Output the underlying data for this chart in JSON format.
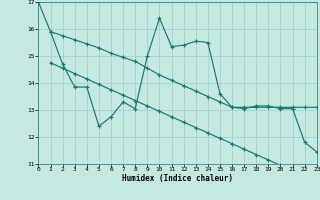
{
  "xlabel": "Humidex (Indice chaleur)",
  "xlim": [
    0,
    23
  ],
  "ylim": [
    11,
    17
  ],
  "yticks": [
    11,
    12,
    13,
    14,
    15,
    16,
    17
  ],
  "xticks": [
    0,
    1,
    2,
    3,
    4,
    5,
    6,
    7,
    8,
    9,
    10,
    11,
    12,
    13,
    14,
    15,
    16,
    17,
    18,
    19,
    20,
    21,
    22,
    23
  ],
  "bg_color": "#c5e8e2",
  "grid_color": "#9acfc6",
  "line_color": "#1a7a6a",
  "series1_x": [
    0,
    1,
    2,
    3,
    4,
    5,
    6,
    7,
    8,
    9,
    10,
    11,
    12,
    13,
    14,
    15,
    16,
    17,
    18,
    19,
    20,
    21,
    22,
    23
  ],
  "series1_y": [
    17.0,
    15.9,
    14.7,
    13.85,
    13.85,
    12.4,
    12.75,
    13.3,
    13.05,
    15.0,
    16.4,
    15.35,
    15.4,
    15.55,
    15.5,
    13.6,
    13.1,
    13.05,
    13.15,
    13.15,
    13.05,
    13.05,
    11.8,
    11.45
  ],
  "series2_x": [
    1,
    2,
    3,
    4,
    5,
    6,
    7,
    8,
    9,
    10,
    11,
    12,
    13,
    14,
    15,
    16,
    17,
    18,
    19,
    20,
    21,
    22,
    23
  ],
  "series2_y": [
    14.75,
    14.55,
    14.35,
    14.15,
    13.95,
    13.75,
    13.55,
    13.35,
    13.15,
    12.95,
    12.75,
    12.55,
    12.35,
    12.15,
    11.95,
    11.75,
    11.55,
    11.35,
    11.15,
    10.95,
    10.75,
    10.55,
    10.35
  ],
  "series3_x": [
    1,
    2,
    3,
    4,
    5,
    6,
    7,
    8,
    9,
    10,
    11,
    12,
    13,
    14,
    15,
    16,
    17,
    18,
    19,
    20,
    21,
    22,
    23
  ],
  "series3_y": [
    15.9,
    15.75,
    15.6,
    15.45,
    15.3,
    15.1,
    14.95,
    14.8,
    14.55,
    14.3,
    14.1,
    13.9,
    13.7,
    13.5,
    13.3,
    13.1,
    13.1,
    13.1,
    13.1,
    13.1,
    13.1,
    13.1,
    13.1
  ],
  "linewidth": 0.85,
  "marker": "+",
  "marker_size": 3,
  "marker_edge_width": 0.85
}
